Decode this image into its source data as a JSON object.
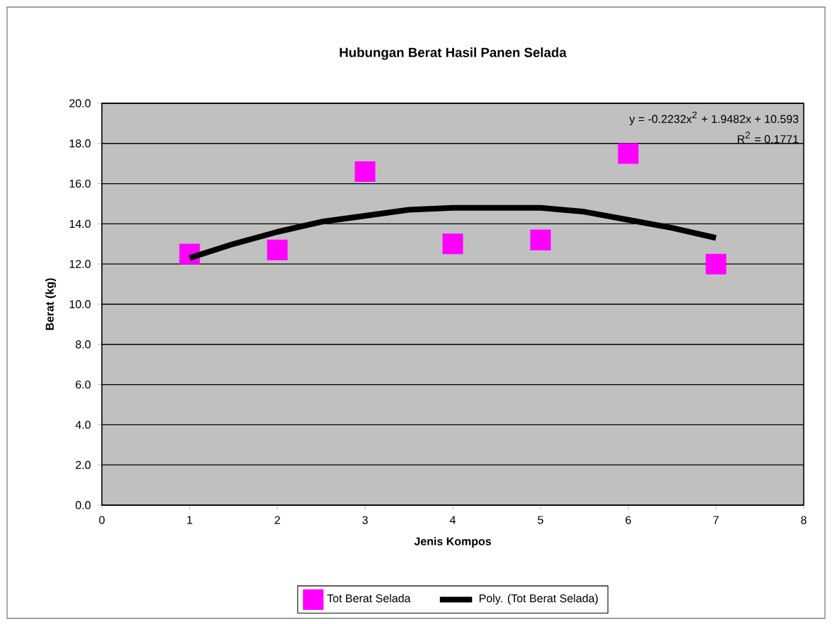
{
  "chart_data": {
    "type": "scatter",
    "title": "Hubungan Berat Hasil Panen Selada",
    "xlabel": "Jenis Kompos",
    "ylabel": "Berat (kg)",
    "series": [
      {
        "name": "Tot Berat Selada",
        "type": "scatter",
        "color": "#ff00ff",
        "marker": "square",
        "x": [
          1,
          2,
          3,
          4,
          5,
          6,
          7
        ],
        "values": [
          12.5,
          12.7,
          16.6,
          13.0,
          13.2,
          17.5,
          12.0
        ]
      },
      {
        "name": "Poly. (Tot Berat Selada)",
        "type": "line",
        "color": "#000000",
        "marker": "none",
        "line_style": "solid",
        "x": [
          1,
          1.5,
          2,
          2.5,
          3,
          3.5,
          4,
          4.5,
          5,
          5.5,
          6,
          6.5,
          7
        ],
        "values": [
          12.3,
          13.0,
          13.6,
          14.1,
          14.4,
          14.7,
          14.8,
          14.8,
          14.8,
          14.6,
          14.2,
          13.8,
          13.3
        ]
      }
    ],
    "annotations": [
      "y = -0.2232x$^{2}$ + 1.9482x + 10.593",
      "R$^{2}$ = 0.1771"
    ],
    "xlim": [
      0,
      8
    ],
    "xticks": [
      0,
      1,
      2,
      3,
      4,
      5,
      6,
      7,
      8
    ],
    "ylim": [
      0,
      20
    ],
    "yticks": [
      {
        "value": 0,
        "label": "0.0"
      },
      {
        "value": 2,
        "label": "2.0"
      },
      {
        "value": 4,
        "label": "4.0"
      },
      {
        "value": 6,
        "label": "6.0"
      },
      {
        "value": 8,
        "label": "8.0"
      },
      {
        "value": 10,
        "label": "10.0"
      },
      {
        "value": 12,
        "label": "12.0"
      },
      {
        "value": 14,
        "label": "14.0"
      },
      {
        "value": 16,
        "label": "16.0"
      },
      {
        "value": 18,
        "label": "18.0"
      },
      {
        "value": 20,
        "label": "20.0"
      }
    ],
    "grid": "y",
    "legend": "bottom"
  }
}
